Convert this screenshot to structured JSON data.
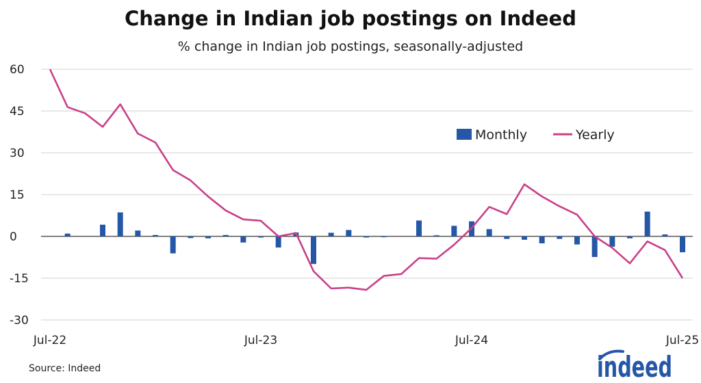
{
  "chart_data": {
    "type": "bar+line",
    "title": "Change in Indian job postings on Indeed",
    "subtitle": "% change in Indian job postings, seasonally-adjusted",
    "source": "Source: Indeed",
    "xlabel": "",
    "ylabel": "",
    "ylim": [
      -30,
      60
    ],
    "yticks": [
      "60",
      "45",
      "30",
      "15",
      "0",
      "-15",
      "-30"
    ],
    "ytick_values": [
      60,
      45,
      30,
      15,
      0,
      -15,
      -30
    ],
    "xtick_labels": [
      "Jul-22",
      "Jul-23",
      "Jul-24",
      "Jul-25"
    ],
    "xtick_index": [
      0,
      12,
      24,
      36
    ],
    "grid": true,
    "legend_position": "top-right",
    "x": [
      "Jul-22",
      "Aug-22",
      "Sep-22",
      "Oct-22",
      "Nov-22",
      "Dec-22",
      "Jan-23",
      "Feb-23",
      "Mar-23",
      "Apr-23",
      "May-23",
      "Jun-23",
      "Jul-23",
      "Aug-23",
      "Sep-23",
      "Oct-23",
      "Nov-23",
      "Dec-23",
      "Jan-24",
      "Feb-24",
      "Mar-24",
      "Apr-24",
      "May-24",
      "Jun-24",
      "Jul-24",
      "Aug-24",
      "Sep-24",
      "Oct-24",
      "Nov-24",
      "Dec-24",
      "Jan-25",
      "Feb-25",
      "Mar-25",
      "Apr-25",
      "May-25",
      "Jun-25",
      "Jul-25"
    ],
    "series": [
      {
        "name": "Monthly",
        "type": "bar",
        "color": "#2557a7",
        "values": [
          0,
          1.0,
          0,
          4.2,
          8.6,
          2.1,
          0.5,
          -6.1,
          -0.6,
          -0.7,
          0.5,
          -2.2,
          -0.4,
          -4.0,
          1.4,
          -9.9,
          1.3,
          2.3,
          -0.4,
          -0.3,
          0,
          5.7,
          0.4,
          3.8,
          5.4,
          2.6,
          -0.9,
          -1.2,
          -2.5,
          -0.9,
          -2.9,
          -7.4,
          -3.7,
          -0.7,
          8.9,
          0.7,
          -5.7
        ]
      },
      {
        "name": "Yearly",
        "type": "line",
        "color": "#c93f88",
        "values": [
          60,
          46.4,
          44.2,
          39.3,
          47.4,
          36.9,
          33.7,
          23.8,
          20.1,
          14.3,
          9.3,
          6.1,
          5.6,
          0,
          1.2,
          -12.5,
          -18.7,
          -18.4,
          -19.2,
          -14.2,
          -13.5,
          -7.8,
          -8.0,
          -3.0,
          3.0,
          10.6,
          8.0,
          18.7,
          14.3,
          10.8,
          7.8,
          0,
          -4.1,
          -9.7,
          -1.8,
          -4.9,
          -15.0
        ]
      }
    ]
  },
  "logo": "indeed"
}
